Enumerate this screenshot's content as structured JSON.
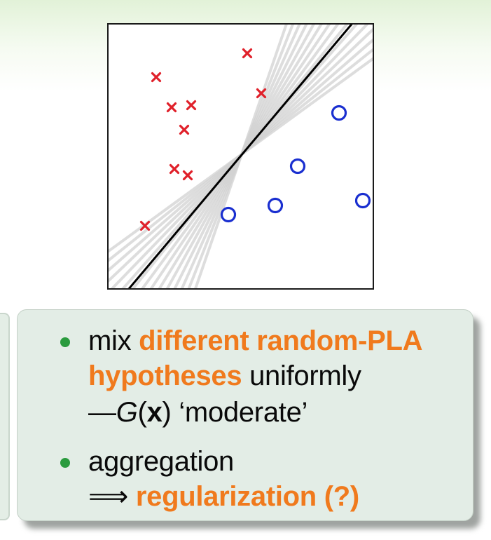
{
  "plot": {
    "classes": [
      {
        "name": "cross",
        "color": "#e0202a"
      },
      {
        "name": "circle",
        "color": "#1a2fd0"
      }
    ],
    "gray_line_color": "#d2d2d2",
    "final_line_color": "#000000"
  },
  "callout": {
    "bullets": [
      {
        "line1_a": "mix ",
        "line1_b": "different random-PLA",
        "line2_a": "hypotheses",
        "line2_b": " uniformly",
        "line3_a": "—",
        "line3_b": "G",
        "line3_c": "(",
        "line3_d": "x",
        "line3_e": ") ‘moderate’"
      },
      {
        "line1": "aggregation",
        "line2_a": "⟹ ",
        "line2_b": "regularization (?)"
      }
    ],
    "bullet_color": "#2a9b3e",
    "highlight_color": "#f07a1d"
  }
}
